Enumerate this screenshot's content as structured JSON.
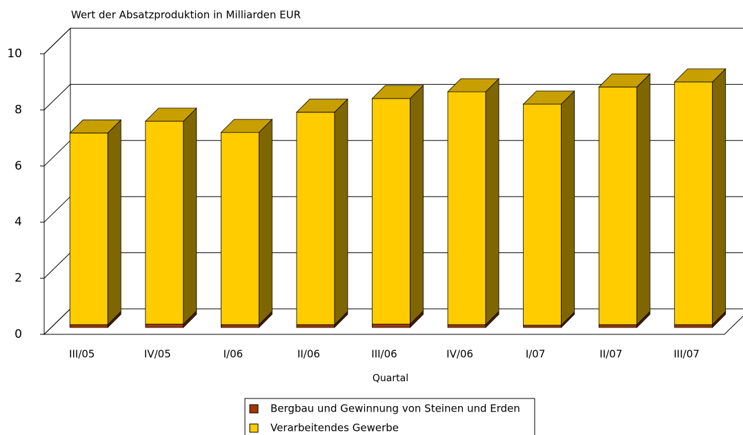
{
  "chart_data": {
    "type": "bar3d_stacked",
    "title": "Wert der Absatzproduktion in Milliarden EUR",
    "x_label": "Quartal",
    "categories": [
      "III/05",
      "IV/05",
      "I/06",
      "II/06",
      "III/06",
      "IV/06",
      "I/07",
      "II/07",
      "III/07"
    ],
    "series": [
      {
        "name": "Bergbau und Gewinnung von Steinen und Erden",
        "color": "#a03800",
        "values": [
          0.1,
          0.12,
          0.1,
          0.1,
          0.12,
          0.1,
          0.08,
          0.1,
          0.1
        ]
      },
      {
        "name": "Verarbeitendes Gewerbe",
        "color": "#ffcc00",
        "values": [
          6.83,
          7.23,
          6.85,
          7.57,
          8.04,
          8.3,
          7.88,
          8.47,
          8.65
        ]
      }
    ],
    "ylim": [
      0,
      10
    ],
    "yticks": [
      0,
      2,
      4,
      6,
      8,
      10
    ],
    "grid": true
  }
}
